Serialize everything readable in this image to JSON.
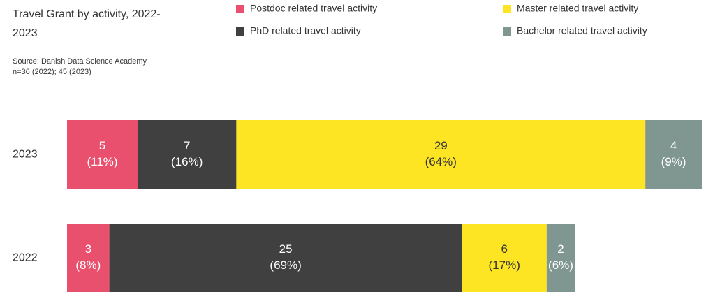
{
  "chart_data": {
    "type": "stacked-barh",
    "title": "Travel Grant by activity, 2022-2023",
    "source": "Source: Danish Data Science Academy",
    "note": "n=36 (2022); 45 (2023)",
    "categories": [
      "2023",
      "2022"
    ],
    "series": [
      {
        "name": "Postdoc related travel activity",
        "color": "#e8506e",
        "values": [
          5,
          3
        ],
        "share_labels": [
          "(11%)",
          "(8%)"
        ]
      },
      {
        "name": "PhD related travel activity",
        "color": "#404040",
        "values": [
          7,
          25
        ],
        "share_labels": [
          "(16%)",
          "(69%)"
        ]
      },
      {
        "name": "Master related travel activity",
        "color": "#fde524",
        "values": [
          29,
          6
        ],
        "share_labels": [
          "(64%)",
          "(17%)"
        ]
      },
      {
        "name": "Bachelor related travel activity",
        "color": "#7f9691",
        "values": [
          4,
          2
        ],
        "share_labels": [
          "(9%)",
          "(6%)"
        ]
      }
    ]
  }
}
